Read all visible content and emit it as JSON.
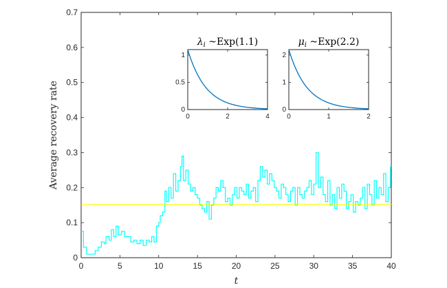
{
  "chart_data": [
    {
      "type": "line",
      "xlabel": "t",
      "ylabel": "Average recovery rate",
      "xlim": [
        0,
        40
      ],
      "ylim": [
        0,
        0.7
      ],
      "xticks": [
        0,
        5,
        10,
        15,
        20,
        25,
        30,
        35,
        40
      ],
      "yticks": [
        0,
        0.1,
        0.2,
        0.3,
        0.4,
        0.5,
        0.6,
        0.7
      ],
      "xtick_labels": [
        "0",
        "5",
        "10",
        "15",
        "20",
        "25",
        "30",
        "35",
        "40"
      ],
      "ytick_labels": [
        "0",
        "0.1",
        "0.2",
        "0.3",
        "0.4",
        "0.5",
        "0.6",
        "0.7"
      ],
      "series": [
        {
          "color": "#00ffff",
          "style": "step",
          "x": [
            0,
            0.3,
            0.7,
            1.2,
            1.8,
            2.2,
            2.6,
            3.0,
            3.2,
            3.6,
            3.9,
            4.2,
            4.5,
            4.8,
            5.2,
            5.6,
            6.0,
            6.4,
            6.8,
            7.2,
            7.6,
            8.0,
            8.4,
            8.8,
            9.1,
            9.4,
            9.7,
            10.0,
            10.2,
            10.5,
            10.8,
            11.0,
            11.3,
            11.6,
            11.9,
            12.2,
            12.5,
            12.8,
            13.0,
            13.2,
            13.5,
            13.8,
            14.1,
            14.4,
            14.7,
            15.0,
            15.3,
            15.6,
            15.9,
            16.2,
            16.5,
            16.8,
            17.1,
            17.4,
            17.7,
            18.0,
            18.3,
            18.6,
            18.9,
            19.2,
            19.5,
            19.8,
            20.1,
            20.4,
            20.7,
            21.0,
            21.3,
            21.6,
            21.9,
            22.2,
            22.5,
            22.8,
            23.1,
            23.4,
            23.7,
            24.0,
            24.3,
            24.6,
            24.9,
            25.2,
            25.5,
            25.8,
            26.1,
            26.4,
            26.7,
            27.0,
            27.3,
            27.6,
            27.9,
            28.2,
            28.5,
            28.8,
            29.1,
            29.4,
            29.7,
            30.0,
            30.3,
            30.6,
            30.9,
            31.2,
            31.5,
            31.8,
            32.1,
            32.4,
            32.7,
            33.0,
            33.3,
            33.6,
            33.9,
            34.2,
            34.5,
            34.8,
            35.1,
            35.4,
            35.7,
            36.0,
            36.3,
            36.6,
            36.9,
            37.2,
            37.5,
            37.8,
            38.1,
            38.4,
            38.7,
            39.0,
            39.3,
            39.6,
            39.9,
            40.0
          ],
          "y": [
            0.075,
            0.03,
            0.01,
            0.01,
            0.02,
            0.03,
            0.045,
            0.04,
            0.06,
            0.05,
            0.08,
            0.06,
            0.09,
            0.065,
            0.075,
            0.06,
            0.06,
            0.045,
            0.05,
            0.04,
            0.05,
            0.035,
            0.05,
            0.045,
            0.06,
            0.045,
            0.09,
            0.1,
            0.12,
            0.13,
            0.19,
            0.16,
            0.2,
            0.17,
            0.24,
            0.19,
            0.22,
            0.26,
            0.29,
            0.22,
            0.25,
            0.21,
            0.19,
            0.2,
            0.18,
            0.17,
            0.15,
            0.14,
            0.13,
            0.16,
            0.11,
            0.15,
            0.17,
            0.2,
            0.19,
            0.22,
            0.2,
            0.16,
            0.17,
            0.15,
            0.18,
            0.2,
            0.17,
            0.2,
            0.19,
            0.18,
            0.21,
            0.17,
            0.19,
            0.2,
            0.16,
            0.22,
            0.26,
            0.23,
            0.25,
            0.21,
            0.24,
            0.22,
            0.2,
            0.19,
            0.17,
            0.21,
            0.2,
            0.18,
            0.16,
            0.19,
            0.2,
            0.15,
            0.2,
            0.18,
            0.17,
            0.19,
            0.2,
            0.22,
            0.18,
            0.21,
            0.3,
            0.2,
            0.23,
            0.18,
            0.16,
            0.22,
            0.15,
            0.18,
            0.14,
            0.2,
            0.17,
            0.21,
            0.19,
            0.14,
            0.16,
            0.18,
            0.13,
            0.16,
            0.15,
            0.17,
            0.2,
            0.14,
            0.21,
            0.18,
            0.15,
            0.22,
            0.17,
            0.2,
            0.18,
            0.24,
            0.16,
            0.2,
            0.26,
            0.26
          ]
        },
        {
          "color": "#ffff00",
          "x": [
            0,
            40
          ],
          "y": [
            0.152,
            0.152
          ]
        }
      ]
    },
    {
      "type": "line",
      "title_var": "λ",
      "title_sub": "i",
      "title_rest": " ~Exp(1.1)",
      "xlim": [
        0,
        4
      ],
      "ylim": [
        0,
        1.1
      ],
      "xticks": [
        0,
        2,
        4
      ],
      "yticks": [
        0,
        0.5,
        1
      ],
      "xtick_labels": [
        "0",
        "2",
        "4"
      ],
      "ytick_labels": [
        "0",
        "0.5",
        "1"
      ],
      "rate": 1.1,
      "color": "#0072bd"
    },
    {
      "type": "line",
      "title_var": "μ",
      "title_sub": "i",
      "title_rest": " ~Exp(2.2)",
      "xlim": [
        0,
        2
      ],
      "ylim": [
        0,
        2.2
      ],
      "xticks": [
        0,
        1,
        2
      ],
      "yticks": [
        0,
        1,
        2
      ],
      "xtick_labels": [
        "0",
        "1",
        "2"
      ],
      "ytick_labels": [
        "0",
        "1",
        "2"
      ],
      "rate": 2.2,
      "color": "#0072bd"
    }
  ]
}
